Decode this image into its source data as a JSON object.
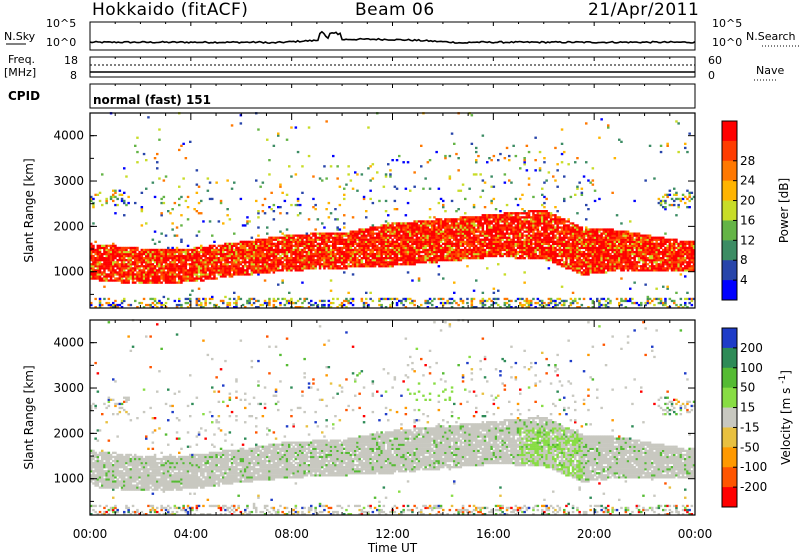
{
  "header": {
    "station": "Hokkaido (fitACF)",
    "beam": "Beam 06",
    "date": "21/Apr/2011"
  },
  "top_panels": {
    "nsky_label": "N.Sky",
    "nsearch_label": "N.Search",
    "noise_ticks": [
      "10^5",
      "10^0"
    ],
    "freq_label": "Freq.",
    "freq_unit": "[MHz]",
    "freq_ticks": [
      "18",
      "8"
    ],
    "nave_label": "Nave",
    "nave_ticks": [
      "60",
      "0"
    ],
    "cpid_label": "CPID",
    "cpid_value": "normal (fast) 151"
  },
  "chart_data": [
    {
      "type": "heatmap",
      "title": "Power",
      "ylabel": "Slant Range [km]",
      "colorbar_label": "Power [dB]",
      "x_ticks": [
        "00:00",
        "04:00",
        "08:00",
        "12:00",
        "16:00",
        "20:00",
        "00:00"
      ],
      "y_ticks": [
        1000,
        2000,
        3000,
        4000
      ],
      "ylim": [
        200,
        4500
      ],
      "xlim_hours": [
        0,
        24
      ],
      "colorbar_ticks": [
        4,
        8,
        12,
        16,
        20,
        24,
        28
      ],
      "colorbar_colors": [
        "#0000ff",
        "#2845aa",
        "#3c8c64",
        "#64b446",
        "#c8dc28",
        "#ffb400",
        "#ff7800",
        "#ff3c00",
        "#ff0000"
      ],
      "main_echo_band_km": [
        {
          "hour": 0,
          "low": 800,
          "high": 1600
        },
        {
          "hour": 2,
          "low": 700,
          "high": 1500
        },
        {
          "hour": 4,
          "low": 750,
          "high": 1500
        },
        {
          "hour": 6,
          "low": 900,
          "high": 1650
        },
        {
          "hour": 8,
          "low": 1000,
          "high": 1800
        },
        {
          "hour": 10,
          "low": 1050,
          "high": 1850
        },
        {
          "hour": 12,
          "low": 1100,
          "high": 2050
        },
        {
          "hour": 14,
          "low": 1200,
          "high": 2150
        },
        {
          "hour": 16,
          "low": 1300,
          "high": 2250
        },
        {
          "hour": 18,
          "low": 1250,
          "high": 2350
        },
        {
          "hour": 19.5,
          "low": 900,
          "high": 1950
        },
        {
          "hour": 21,
          "low": 1000,
          "high": 1900
        },
        {
          "hour": 23,
          "low": 1000,
          "high": 1700
        },
        {
          "hour": 24,
          "low": 1000,
          "high": 1650
        }
      ]
    },
    {
      "type": "heatmap",
      "title": "Velocity",
      "ylabel": "Slant Range [km]",
      "xlabel": "Time UT",
      "colorbar_label": "Velocity [m s^-1]",
      "colorbar_label_text": "Velocity [m s",
      "colorbar_label_sup": "-1",
      "colorbar_label_close": "]",
      "x_ticks": [
        "00:00",
        "04:00",
        "08:00",
        "12:00",
        "16:00",
        "20:00",
        "00:00"
      ],
      "y_ticks": [
        1000,
        2000,
        3000,
        4000
      ],
      "ylim": [
        200,
        4500
      ],
      "xlim_hours": [
        0,
        24
      ],
      "colorbar_ticks": [
        200,
        100,
        50,
        15,
        -15,
        -50,
        -100,
        -200
      ],
      "colorbar_colors": [
        "#1e3cc8",
        "#2e8b57",
        "#55bb33",
        "#88dd44",
        "#c8c8c0",
        "#e8c040",
        "#ff9900",
        "#ff5500",
        "#ff0000"
      ]
    }
  ]
}
